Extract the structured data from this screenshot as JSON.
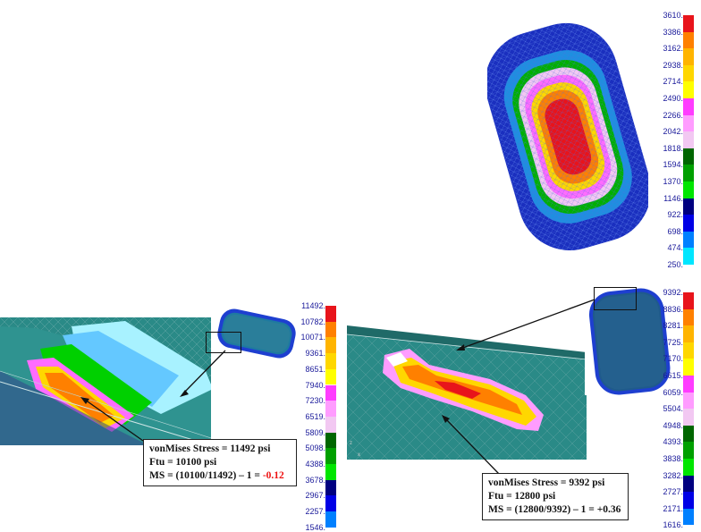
{
  "top_legend": {
    "labels": [
      "3610.",
      "3386.",
      "3162.",
      "2938.",
      "2714.",
      "2490.",
      "2266.",
      "2042.",
      "1818.",
      "1594.",
      "1370.",
      "1146.",
      "922.",
      "698.",
      "474.",
      "250."
    ]
  },
  "left_legend": {
    "labels": [
      "11492.",
      "10782.",
      "10071.",
      "9361.",
      "8651.",
      "7940.",
      "7230.",
      "6519.",
      "5809.",
      "5098.",
      "4388.",
      "3678.",
      "2967.",
      "2257.",
      "1546."
    ]
  },
  "right_legend": {
    "labels": [
      "9392.",
      "8836.",
      "8281.",
      "7725.",
      "7170.",
      "6615.",
      "6059.",
      "5504.",
      "4948.",
      "4393.",
      "3838.",
      "3282.",
      "2727.",
      "2171.",
      "1616."
    ]
  },
  "legend_colors": [
    "#e8141b",
    "#ff8000",
    "#ffb400",
    "#ffd700",
    "#ffff00",
    "#ff3cff",
    "#ff9cff",
    "#f2c8f2",
    "#006600",
    "#00a000",
    "#00e600",
    "#000080",
    "#0000e6",
    "#0080ff",
    "#00e6ff"
  ],
  "notes": {
    "left": {
      "line1": "vonMises Stress = 11492 psi",
      "line2": "Ftu = 10100 psi",
      "line3_prefix": "MS = (10100/11492) – 1 = ",
      "line3_value": "-0.12"
    },
    "right": {
      "line1": "vonMises Stress = 9392 psi",
      "line2": "Ftu = 12800 psi",
      "line3": "MS = (12800/9392) – 1 = +0.36"
    }
  }
}
